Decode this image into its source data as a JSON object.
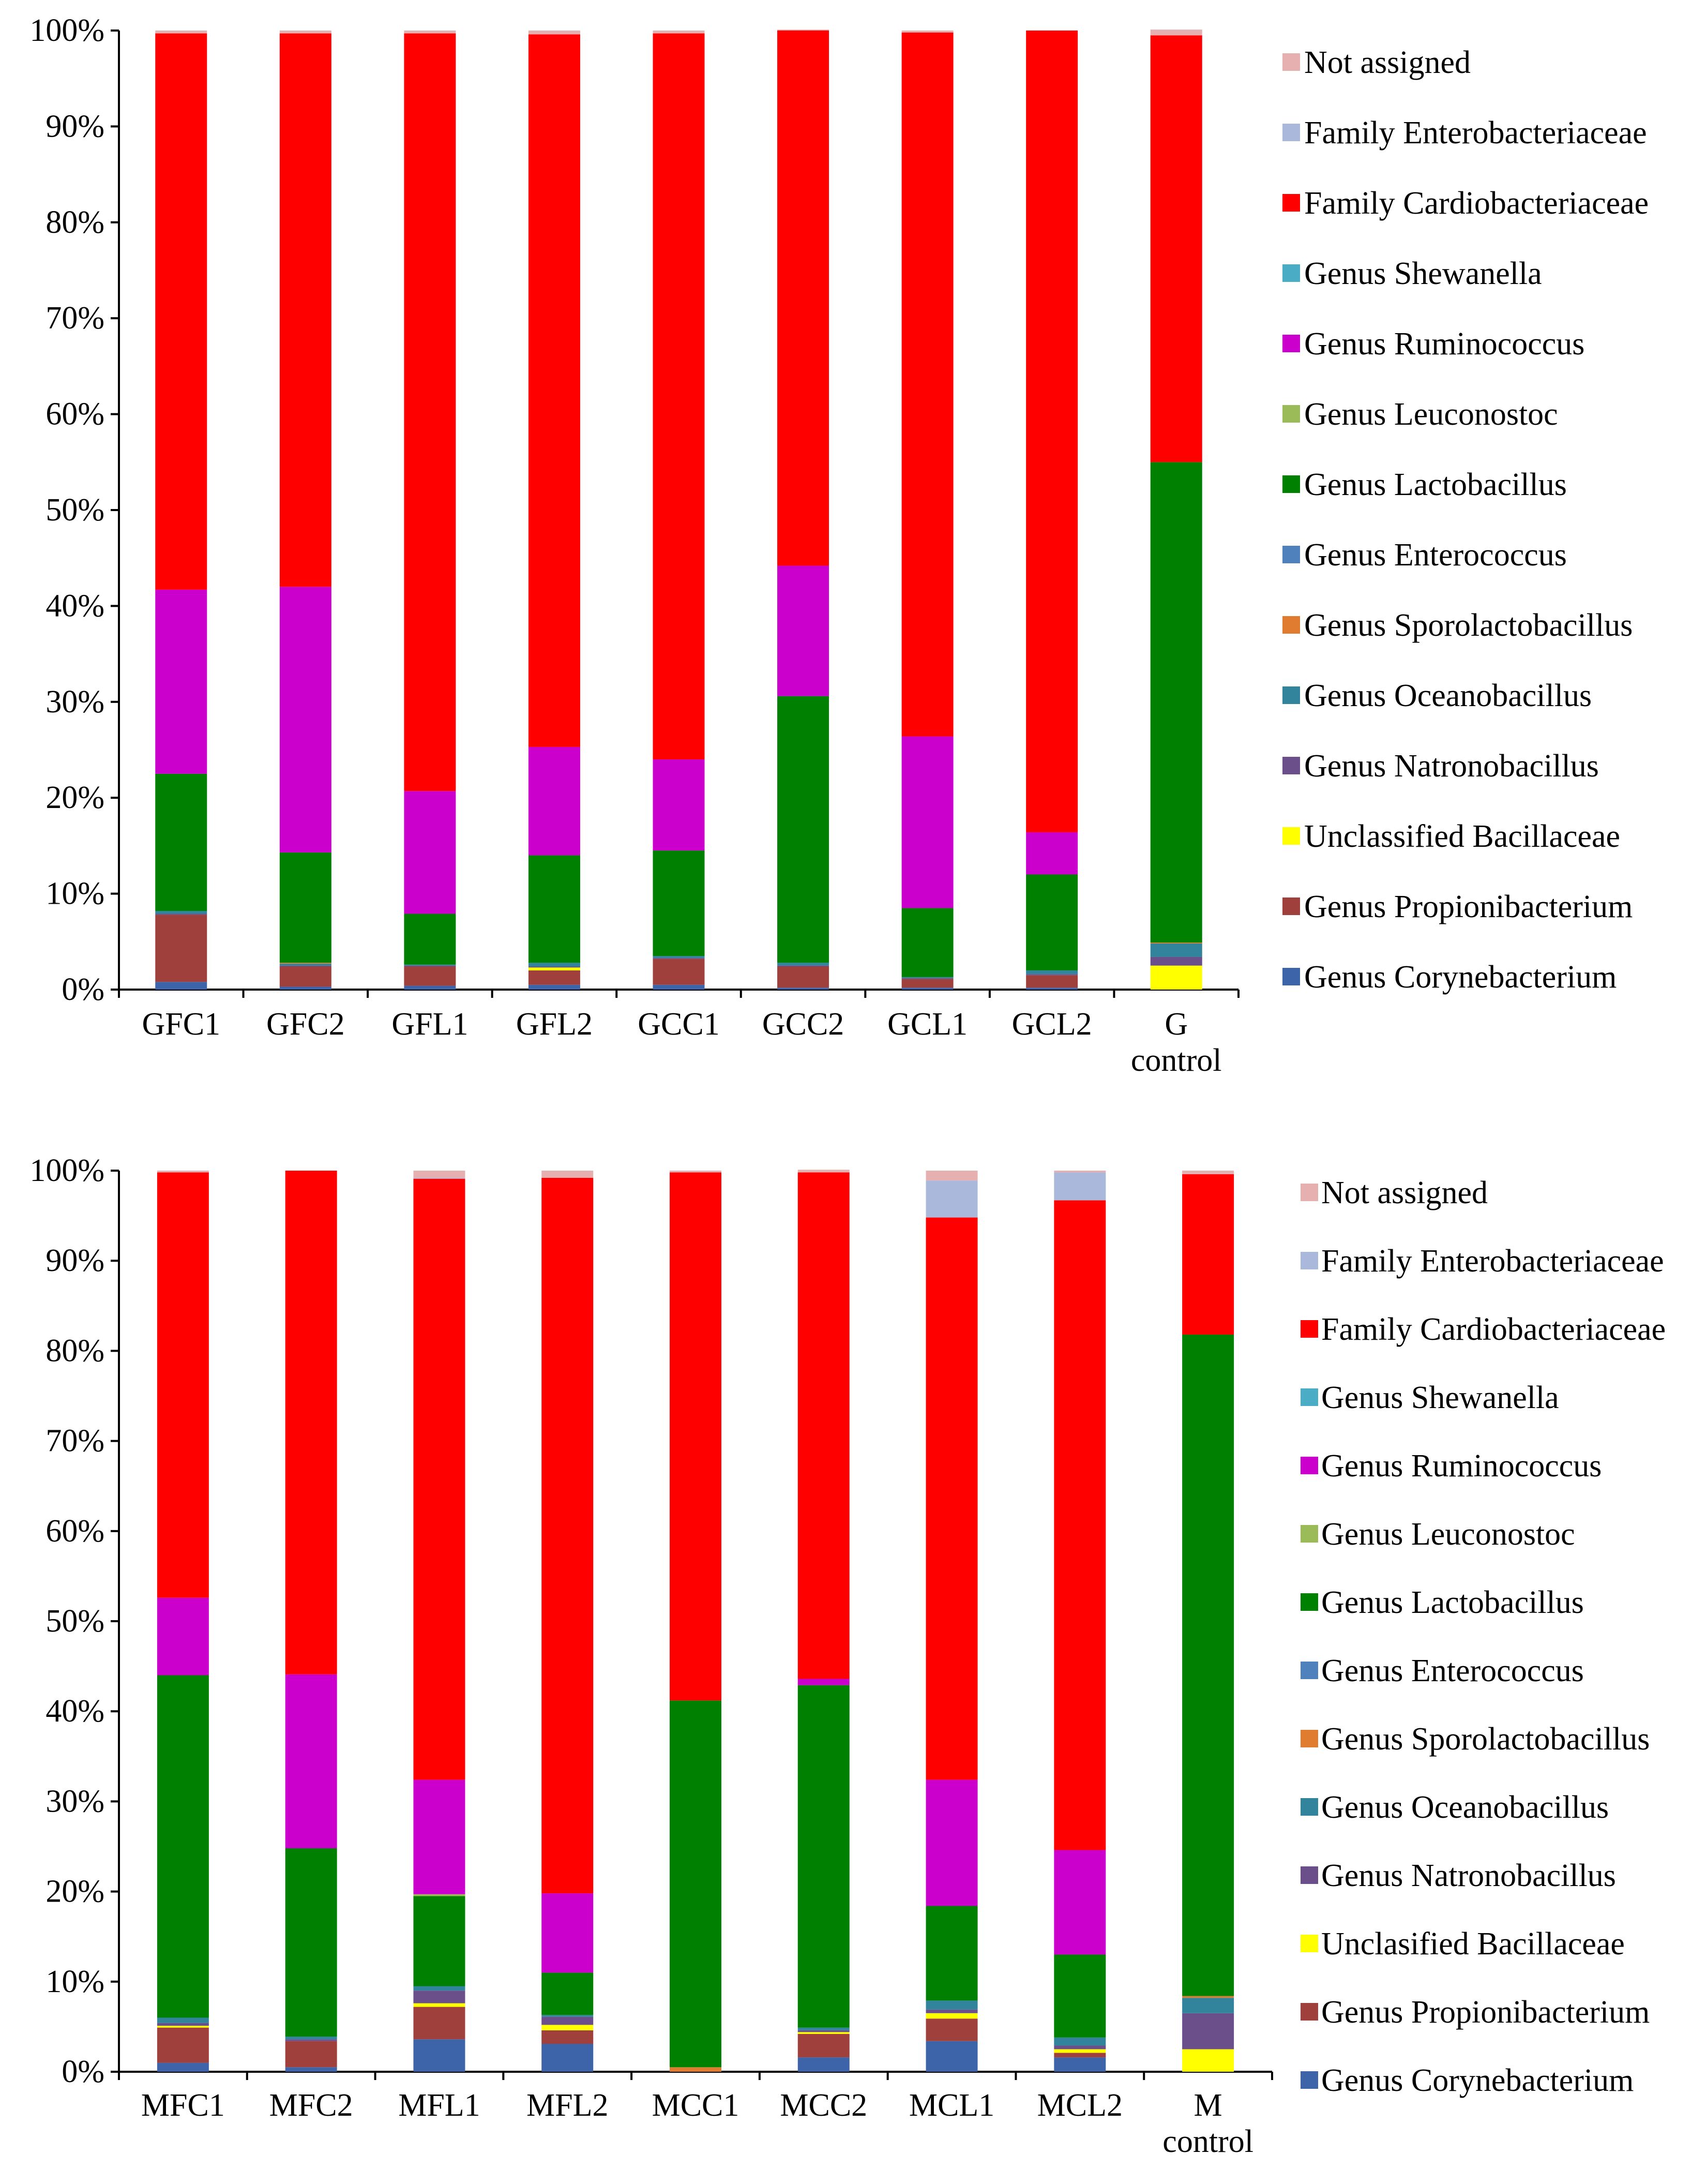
{
  "chart_data": [
    {
      "type": "bar",
      "stacked": true,
      "normalized": true,
      "title": "",
      "xlabel": "",
      "ylabel": "",
      "ylim": [
        0,
        100
      ],
      "y_ticks": [
        "0%",
        "10%",
        "20%",
        "30%",
        "40%",
        "50%",
        "60%",
        "70%",
        "80%",
        "90%",
        "100%"
      ],
      "categories": [
        [
          "GFC1"
        ],
        [
          "GFC2"
        ],
        [
          "GFL1"
        ],
        [
          "GFL2"
        ],
        [
          "GCC1"
        ],
        [
          "GCC2"
        ],
        [
          "GCL1"
        ],
        [
          "GCL2"
        ],
        [
          "G",
          "control"
        ]
      ],
      "legend_position": "right",
      "series": [
        {
          "name": "Genus Corynebacterium",
          "color": "#3D64A8",
          "values": [
            0.8,
            0.3,
            0.4,
            0.5,
            0.5,
            0.2,
            0.2,
            0.2,
            0.0
          ]
        },
        {
          "name": "Genus Propionibacterium",
          "color": "#A0403C",
          "values": [
            7.0,
            2.1,
            2.0,
            1.5,
            2.7,
            2.2,
            0.9,
            1.3,
            0.0
          ]
        },
        {
          "name": "Unclassified Bacillaceae",
          "color": "#FFFF00",
          "values": [
            0.0,
            0.0,
            0.0,
            0.3,
            0.0,
            0.0,
            0.0,
            0.0,
            2.5
          ]
        },
        {
          "name": "Genus Natronobacillus",
          "color": "#6B4F8B",
          "values": [
            0.1,
            0.1,
            0.1,
            0.1,
            0.1,
            0.1,
            0.1,
            0.1,
            0.9
          ]
        },
        {
          "name": "Genus Oceanobacillus",
          "color": "#31849B",
          "values": [
            0.3,
            0.2,
            0.1,
            0.4,
            0.2,
            0.3,
            0.1,
            0.4,
            1.4
          ]
        },
        {
          "name": "Genus Sporolactobacillus",
          "color": "#E07C30",
          "values": [
            0.0,
            0.1,
            0.0,
            0.0,
            0.0,
            0.0,
            0.0,
            0.0,
            0.1
          ]
        },
        {
          "name": "Genus Enterococcus",
          "color": "#4F81BD",
          "values": [
            0.0,
            0.0,
            0.0,
            0.0,
            0.0,
            0.0,
            0.0,
            0.0,
            0.0
          ]
        },
        {
          "name": "Genus Lactobacillus",
          "color": "#008000",
          "values": [
            14.3,
            11.5,
            5.3,
            11.2,
            11.0,
            27.8,
            7.2,
            10.0,
            50.1
          ]
        },
        {
          "name": "Genus Leuconostoc",
          "color": "#9BBB59",
          "values": [
            0.0,
            0.0,
            0.0,
            0.0,
            0.0,
            0.0,
            0.0,
            0.0,
            0.0
          ]
        },
        {
          "name": "Genus Ruminococcus",
          "color": "#CC00CC",
          "values": [
            19.2,
            27.7,
            12.8,
            11.3,
            9.5,
            13.6,
            17.9,
            4.4,
            0.0
          ]
        },
        {
          "name": "Genus Shewanella",
          "color": "#4BACC6",
          "values": [
            0.0,
            0.0,
            0.0,
            0.0,
            0.0,
            0.0,
            0.0,
            0.0,
            0.0
          ]
        },
        {
          "name": "Family Cardiobacteriaceae",
          "color": "#FF0000",
          "values": [
            58.0,
            57.7,
            79.0,
            74.3,
            75.7,
            55.8,
            73.4,
            83.6,
            44.5
          ]
        },
        {
          "name": "Family Enterobacteriaceae",
          "color": "#A9B8DB",
          "values": [
            0.0,
            0.0,
            0.0,
            0.0,
            0.0,
            0.0,
            0.0,
            0.0,
            0.0
          ]
        },
        {
          "name": "Not assigned",
          "color": "#E6B0B0",
          "values": [
            0.3,
            0.3,
            0.3,
            0.4,
            0.3,
            0.1,
            0.2,
            0.0,
            0.6
          ]
        }
      ]
    },
    {
      "type": "bar",
      "stacked": true,
      "normalized": true,
      "title": "",
      "xlabel": "",
      "ylabel": "",
      "ylim": [
        0,
        100
      ],
      "y_ticks": [
        "0%",
        "10%",
        "20%",
        "30%",
        "40%",
        "50%",
        "60%",
        "70%",
        "80%",
        "90%",
        "100%"
      ],
      "categories": [
        [
          "MFC1"
        ],
        [
          "MFC2"
        ],
        [
          "MFL1"
        ],
        [
          "MFL2"
        ],
        [
          "MCC1"
        ],
        [
          "MCC2"
        ],
        [
          "MCL1"
        ],
        [
          "MCL2"
        ],
        [
          "M",
          "control"
        ]
      ],
      "legend_position": "right",
      "series": [
        {
          "name": "Genus Corynebacterium",
          "color": "#3D64A8",
          "values": [
            1.0,
            0.5,
            3.6,
            3.1,
            0.0,
            1.6,
            3.4,
            1.6,
            0.0
          ]
        },
        {
          "name": "Genus Propionibacterium",
          "color": "#A0403C",
          "values": [
            3.9,
            2.9,
            3.6,
            1.5,
            0.0,
            2.6,
            2.5,
            0.5,
            0.0
          ]
        },
        {
          "name": "Unclasified Bacillaceae",
          "color": "#FFFF00",
          "values": [
            0.2,
            0.0,
            0.4,
            0.6,
            0.0,
            0.2,
            0.6,
            0.4,
            2.5
          ]
        },
        {
          "name": "Genus Natronobacillus",
          "color": "#6B4F8B",
          "values": [
            0.3,
            0.2,
            1.4,
            0.9,
            0.0,
            0.2,
            0.4,
            0.4,
            4.0
          ]
        },
        {
          "name": "Genus Oceanobacillus",
          "color": "#31849B",
          "values": [
            0.6,
            0.3,
            0.5,
            0.2,
            0.0,
            0.3,
            1.0,
            0.9,
            1.7
          ]
        },
        {
          "name": "Genus Sporolactobacillus",
          "color": "#E07C30",
          "values": [
            0.0,
            0.0,
            0.0,
            0.0,
            0.5,
            0.0,
            0.0,
            0.0,
            0.2
          ]
        },
        {
          "name": "Genus Enterococcus",
          "color": "#4F81BD",
          "values": [
            0.0,
            0.0,
            0.0,
            0.0,
            0.0,
            0.0,
            0.0,
            0.0,
            0.0
          ]
        },
        {
          "name": "Genus Lactobacillus",
          "color": "#008000",
          "values": [
            38.0,
            20.9,
            10.0,
            4.7,
            40.7,
            38.0,
            10.5,
            9.2,
            73.4
          ]
        },
        {
          "name": "Genus Leuconostoc",
          "color": "#9BBB59",
          "values": [
            0.0,
            0.0,
            0.2,
            0.0,
            0.0,
            0.0,
            0.0,
            0.0,
            0.0
          ]
        },
        {
          "name": "Genus Ruminococcus",
          "color": "#CC00CC",
          "values": [
            8.6,
            19.3,
            12.7,
            8.8,
            0.0,
            0.7,
            14.0,
            11.6,
            0.0
          ]
        },
        {
          "name": "Genus Shewanella",
          "color": "#4BACC6",
          "values": [
            0.0,
            0.0,
            0.0,
            0.0,
            0.0,
            0.0,
            0.0,
            0.0,
            0.0
          ]
        },
        {
          "name": "Family Cardiobacteriaceae",
          "color": "#FF0000",
          "values": [
            47.2,
            55.9,
            66.7,
            79.4,
            58.6,
            56.2,
            62.4,
            72.1,
            17.8
          ]
        },
        {
          "name": "Family Enterobacteriaceae",
          "color": "#A9B8DB",
          "values": [
            0.0,
            0.0,
            0.1,
            0.0,
            0.0,
            0.0,
            4.1,
            3.1,
            0.0
          ]
        },
        {
          "name": "Not assigned",
          "color": "#E6B0B0",
          "values": [
            0.2,
            0.0,
            0.8,
            0.8,
            0.2,
            0.3,
            1.1,
            0.2,
            0.4
          ]
        }
      ]
    }
  ]
}
